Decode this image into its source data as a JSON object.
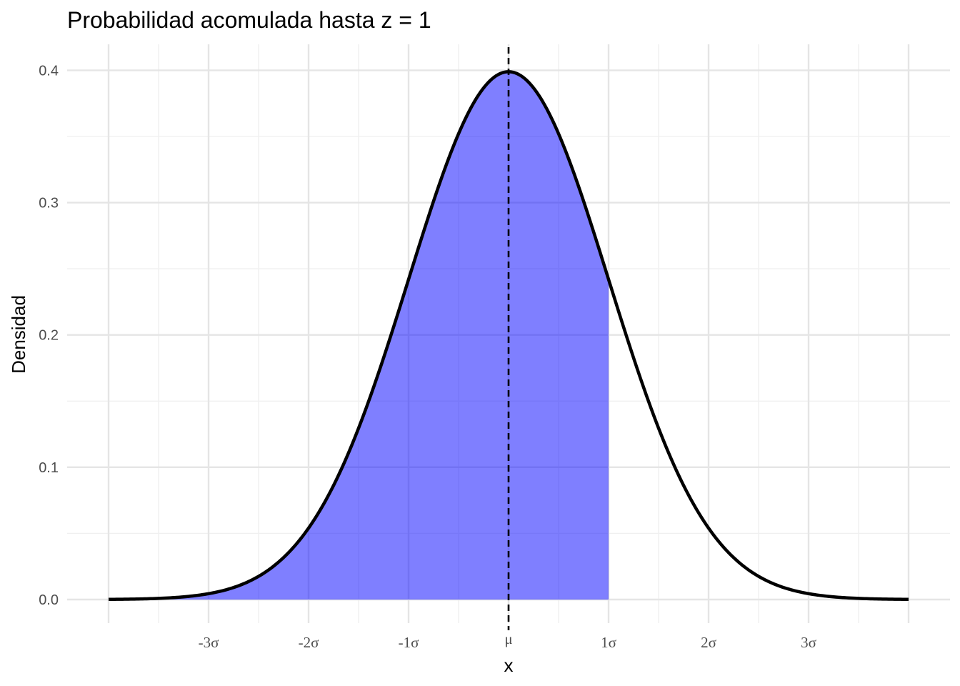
{
  "chart_data": {
    "type": "area",
    "title": "Probabilidad acomulada hasta z = 1",
    "xlabel": "x",
    "ylabel": "Densidad",
    "xlim": [
      -4,
      4
    ],
    "ylim": [
      0,
      0.4
    ],
    "y_ticks": [
      {
        "value": 0.0,
        "label": "0.0"
      },
      {
        "value": 0.1,
        "label": "0.1"
      },
      {
        "value": 0.2,
        "label": "0.2"
      },
      {
        "value": 0.3,
        "label": "0.3"
      },
      {
        "value": 0.4,
        "label": "0.4"
      }
    ],
    "x_ticks": [
      {
        "value": -3,
        "label": "-3σ"
      },
      {
        "value": -2,
        "label": "-2σ"
      },
      {
        "value": -1,
        "label": "-1σ"
      },
      {
        "value": 0,
        "label": "μ"
      },
      {
        "value": 1,
        "label": "1σ"
      },
      {
        "value": 2,
        "label": "2σ"
      },
      {
        "value": 3,
        "label": "3σ"
      }
    ],
    "curve": {
      "distribution": "standard normal density",
      "x": [
        -4.0,
        -3.5,
        -3.0,
        -2.5,
        -2.0,
        -1.5,
        -1.0,
        -0.5,
        0.0,
        0.5,
        1.0,
        1.5,
        2.0,
        2.5,
        3.0,
        3.5,
        4.0
      ],
      "y": [
        0.0001,
        0.0009,
        0.0044,
        0.0175,
        0.054,
        0.1295,
        0.242,
        0.3521,
        0.3989,
        0.3521,
        0.242,
        0.1295,
        0.054,
        0.0175,
        0.0044,
        0.0009,
        0.0001
      ],
      "color": "#000000"
    },
    "shaded_region": {
      "from": -4,
      "to": 1,
      "color": "#0000ff",
      "opacity": 0.5
    },
    "reference_line": {
      "x": 0,
      "style": "dashed",
      "color": "#000000"
    },
    "grid": true
  }
}
